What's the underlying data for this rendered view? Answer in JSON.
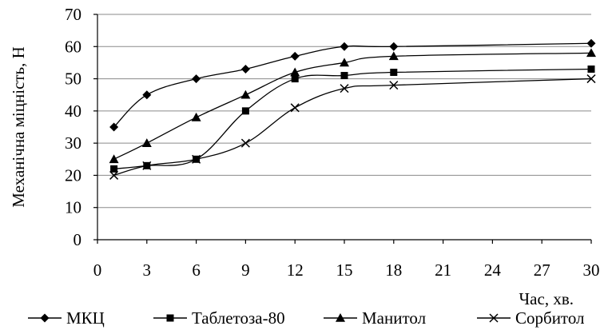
{
  "chart_data": {
    "type": "line",
    "xlabel": "Час, хв.",
    "ylabel": "Механічна міцність, Н",
    "xlim": [
      0,
      30
    ],
    "ylim": [
      0,
      70
    ],
    "x_ticks": [
      0,
      3,
      6,
      9,
      12,
      15,
      18,
      21,
      24,
      27,
      30
    ],
    "y_ticks": [
      0,
      10,
      20,
      30,
      40,
      50,
      60,
      70
    ],
    "grid": "horizontal",
    "legend_position": "bottom",
    "series": [
      {
        "name": "МКЦ",
        "marker": "diamond",
        "x": [
          1,
          3,
          6,
          9,
          12,
          15,
          18,
          30
        ],
        "values": [
          35,
          45,
          50,
          53,
          57,
          60,
          60,
          61
        ]
      },
      {
        "name": "Таблетоза-80",
        "marker": "square",
        "x": [
          1,
          3,
          6,
          9,
          12,
          15,
          18,
          30
        ],
        "values": [
          22,
          23,
          25,
          40,
          50,
          51,
          52,
          53
        ]
      },
      {
        "name": "Манитол",
        "marker": "triangle",
        "x": [
          1,
          3,
          6,
          9,
          12,
          15,
          18,
          30
        ],
        "values": [
          25,
          30,
          38,
          45,
          52,
          55,
          57,
          58
        ]
      },
      {
        "name": "Сорбитол",
        "marker": "x",
        "x": [
          1,
          3,
          6,
          9,
          12,
          15,
          18,
          30
        ],
        "values": [
          20,
          23,
          25,
          30,
          41,
          47,
          48,
          50
        ]
      }
    ]
  }
}
